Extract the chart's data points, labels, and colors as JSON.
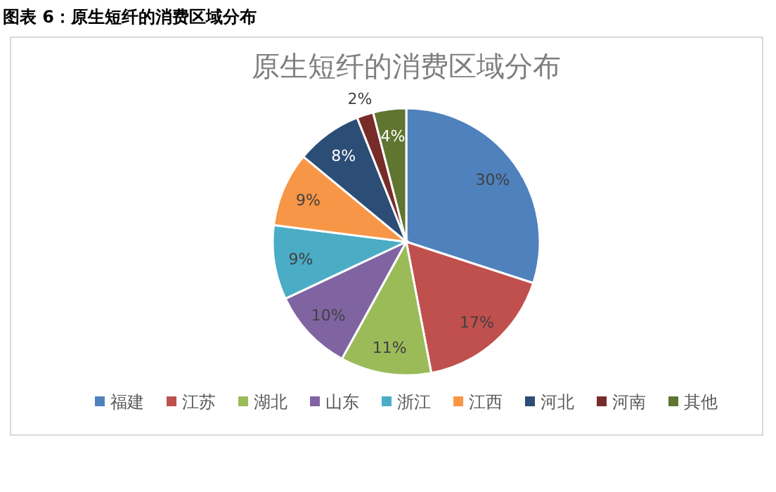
{
  "chart_data": {
    "type": "pie",
    "title": "图表 6：原生短纤的消费区域分布",
    "subtitle": "原生短纤的消费区域分布",
    "categories": [
      "福建",
      "江苏",
      "湖北",
      "山东",
      "浙江",
      "江西",
      "河北",
      "河南",
      "其他"
    ],
    "values": [
      30,
      17,
      11,
      10,
      9,
      9,
      8,
      2,
      4
    ],
    "value_labels": [
      "30%",
      "17%",
      "11%",
      "10%",
      "9%",
      "9%",
      "8%",
      "2%",
      "4%"
    ],
    "colors": [
      "#4f81bd",
      "#c0504d",
      "#9bbb59",
      "#8064a2",
      "#4bacc6",
      "#f79646",
      "#2c4d75",
      "#772c2a",
      "#5f7530"
    ],
    "legend": "bottom"
  }
}
